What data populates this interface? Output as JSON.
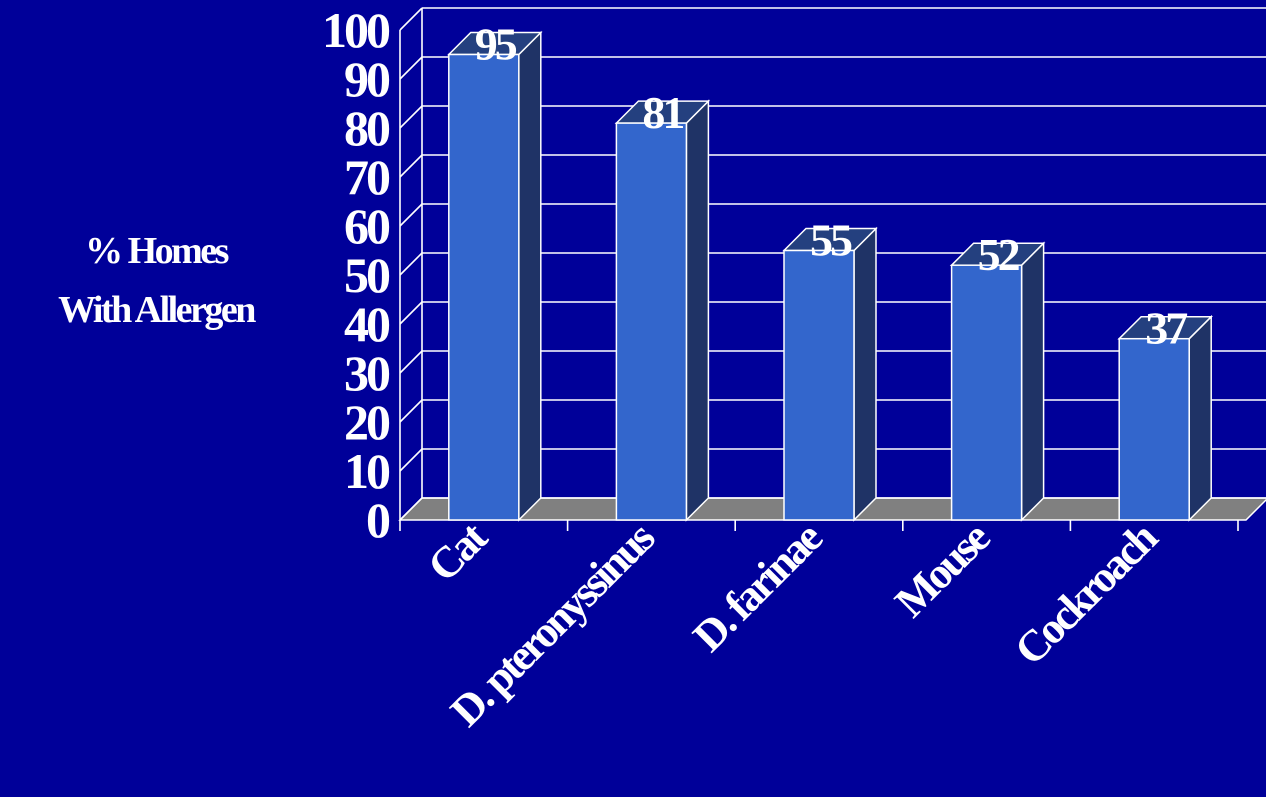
{
  "chart_data": {
    "type": "bar",
    "title": "",
    "ylabel_lines": [
      "% Homes",
      "With Allergen"
    ],
    "xlabel": "",
    "categories": [
      "Cat",
      "D. pteronyssinus",
      "D. farinae",
      "Mouse",
      "Cockroach"
    ],
    "values": [
      95,
      81,
      55,
      52,
      37
    ],
    "data_labels": [
      "95",
      "81",
      "55",
      "52",
      "37"
    ],
    "yticks": [
      "0",
      "10",
      "20",
      "30",
      "40",
      "50",
      "60",
      "70",
      "80",
      "90",
      "100"
    ],
    "ylim": [
      0,
      100
    ],
    "grid": true,
    "legend": "none",
    "style": "3d"
  },
  "colors": {
    "background": "#000099",
    "bar_front": "#3366CC",
    "bar_side": "#1F3366",
    "bar_top": "#24407F",
    "floor": "#808080",
    "gridline": "#FFFFFF",
    "text": "#FFFFFF"
  }
}
